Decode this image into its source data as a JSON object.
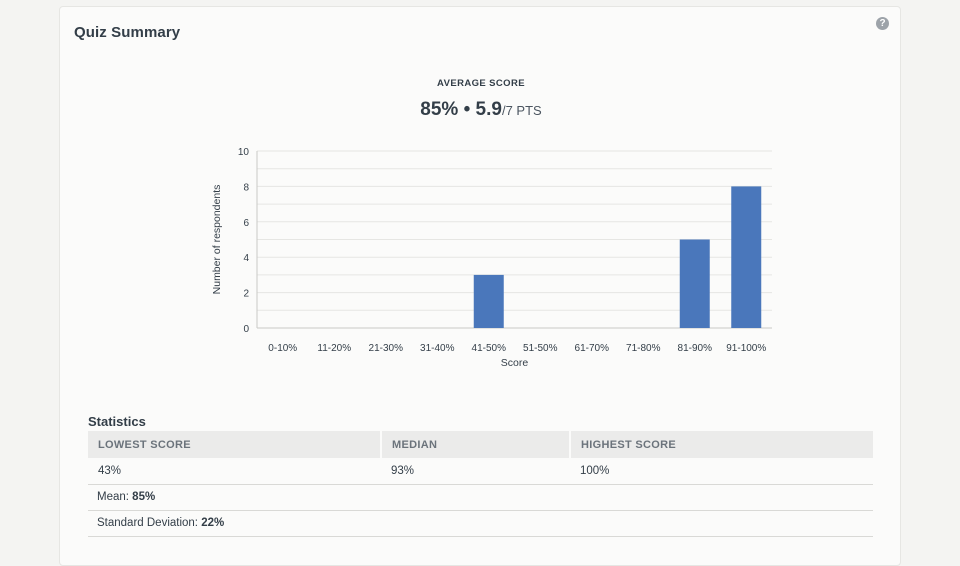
{
  "card": {
    "title": "Quiz Summary",
    "help_icon": "question-circle-icon"
  },
  "average": {
    "label": "AVERAGE SCORE",
    "percent": "85%",
    "separator": "•",
    "points": "5.9",
    "points_suffix": "/7 PTS"
  },
  "chart_data": {
    "type": "bar",
    "title": "",
    "xlabel": "Score",
    "ylabel": "Number of respondents",
    "categories": [
      "0-10%",
      "11-20%",
      "21-30%",
      "31-40%",
      "41-50%",
      "51-50%",
      "61-70%",
      "71-80%",
      "81-90%",
      "91-100%"
    ],
    "values": [
      0,
      0,
      0,
      0,
      3,
      0,
      0,
      0,
      5,
      8
    ],
    "ylim": [
      0,
      10
    ],
    "yticks": [
      0,
      2,
      4,
      6,
      8,
      10
    ],
    "bar_color": "#4a77bb",
    "grid": true
  },
  "statistics": {
    "title": "Statistics",
    "headers": [
      "LOWEST SCORE",
      "MEDIAN",
      "HIGHEST SCORE"
    ],
    "values": [
      "43%",
      "93%",
      "100%"
    ],
    "mean_label": "Mean:",
    "mean_value": "85%",
    "sd_label": "Standard Deviation:",
    "sd_value": "22%"
  }
}
